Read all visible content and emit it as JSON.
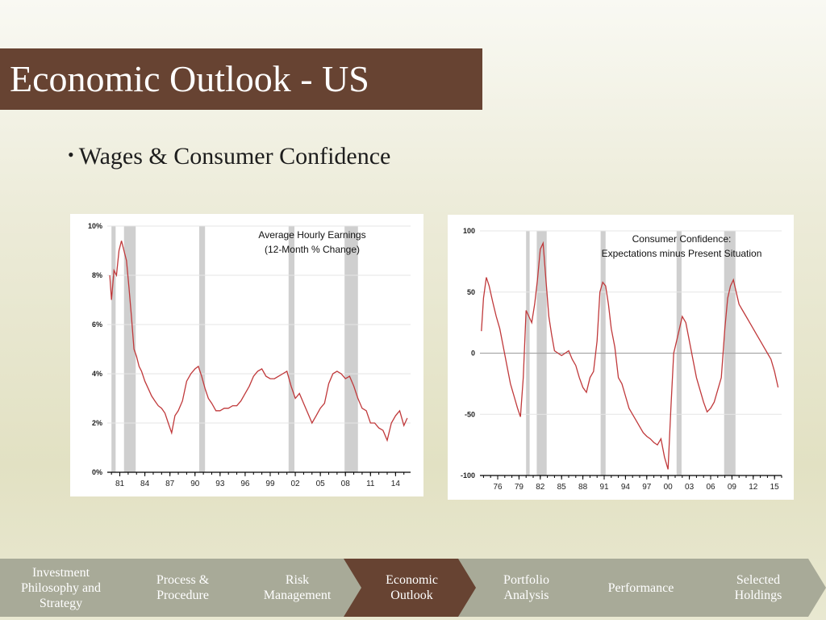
{
  "slide": {
    "title": "Economic Outlook - US",
    "bullet": "Wages & Consumer Confidence"
  },
  "colors": {
    "title_bar": "#674332",
    "line": "#c0393b",
    "recession": "#cfcfcf",
    "nav_inactive": "#a8aa98",
    "nav_active": "#674332"
  },
  "navigation": [
    {
      "label": "Investment\nPhilosophy and\nStrategy",
      "active": false
    },
    {
      "label": "Process &\nProcedure",
      "active": false
    },
    {
      "label": "Risk\nManagement",
      "active": false
    },
    {
      "label": "Economic\nOutlook",
      "active": true
    },
    {
      "label": "Portfolio\nAnalysis",
      "active": false
    },
    {
      "label": "Performance",
      "active": false
    },
    {
      "label": "Selected\nHoldings",
      "active": false
    }
  ],
  "chart_data": [
    {
      "type": "line",
      "title": "Average Hourly Earnings",
      "subtitle": "(12-Month % Change)",
      "xlim": [
        1979.5,
        2015.8
      ],
      "ylim": [
        0,
        10
      ],
      "x_ticks": [
        1981,
        1984,
        1987,
        1990,
        1993,
        1996,
        1999,
        2002,
        2005,
        2008,
        2011,
        2014
      ],
      "x_tick_labels": [
        "81",
        "84",
        "87",
        "90",
        "93",
        "96",
        "99",
        "02",
        "05",
        "08",
        "11",
        "14"
      ],
      "y_ticks": [
        0,
        2,
        4,
        6,
        8,
        10
      ],
      "y_tick_labels": [
        "0%",
        "2%",
        "4%",
        "6%",
        "8%",
        "10%"
      ],
      "grid": true,
      "recessions": [
        [
          1980.0,
          1980.5
        ],
        [
          1981.5,
          1982.9
        ],
        [
          1990.5,
          1991.2
        ],
        [
          2001.2,
          2001.9
        ],
        [
          2007.9,
          2009.5
        ]
      ],
      "series": [
        {
          "x": [
            1979.8,
            1980.0,
            1980.3,
            1980.6,
            1980.9,
            1981.2,
            1981.5,
            1981.8,
            1982.1,
            1982.4,
            1982.7,
            1983.0,
            1983.3,
            1983.6,
            1984.0,
            1984.4,
            1984.8,
            1985.2,
            1985.6,
            1986.0,
            1986.4,
            1986.8,
            1987.2,
            1987.6,
            1988.0,
            1988.5,
            1989.0,
            1989.5,
            1990.0,
            1990.4,
            1990.8,
            1991.2,
            1991.6,
            1992.0,
            1992.5,
            1993.0,
            1993.5,
            1994.0,
            1994.5,
            1995.0,
            1995.5,
            1996.0,
            1996.5,
            1997.0,
            1997.5,
            1998.0,
            1998.5,
            1999.0,
            1999.5,
            2000.0,
            2000.5,
            2001.0,
            2001.5,
            2002.0,
            2002.5,
            2003.0,
            2003.5,
            2004.0,
            2004.5,
            2005.0,
            2005.5,
            2006.0,
            2006.5,
            2007.0,
            2007.5,
            2008.0,
            2008.5,
            2009.0,
            2009.5,
            2010.0,
            2010.5,
            2011.0,
            2011.5,
            2012.0,
            2012.5,
            2013.0,
            2013.5,
            2014.0,
            2014.5,
            2015.0,
            2015.4
          ],
          "values": [
            8.0,
            7.0,
            8.2,
            8.0,
            9.0,
            9.4,
            9.0,
            8.6,
            7.5,
            6.3,
            5.0,
            4.7,
            4.3,
            4.1,
            3.7,
            3.4,
            3.1,
            2.9,
            2.7,
            2.6,
            2.4,
            2.0,
            1.6,
            2.3,
            2.5,
            2.9,
            3.7,
            4.0,
            4.2,
            4.3,
            3.9,
            3.4,
            3.0,
            2.8,
            2.5,
            2.5,
            2.6,
            2.6,
            2.7,
            2.7,
            2.9,
            3.2,
            3.5,
            3.9,
            4.1,
            4.2,
            3.9,
            3.8,
            3.8,
            3.9,
            4.0,
            4.1,
            3.5,
            3.0,
            3.2,
            2.8,
            2.4,
            2.0,
            2.3,
            2.6,
            2.8,
            3.6,
            4.0,
            4.1,
            4.0,
            3.8,
            3.9,
            3.5,
            3.0,
            2.6,
            2.5,
            2.0,
            2.0,
            1.8,
            1.7,
            1.3,
            2.0,
            2.3,
            2.5,
            1.9,
            2.2
          ]
        }
      ]
    },
    {
      "type": "line",
      "title": "Consumer Confidence:",
      "subtitle": "Expectations minus Present Situation",
      "xlim": [
        1973.5,
        2016.0
      ],
      "ylim": [
        -100,
        100
      ],
      "x_ticks": [
        1976,
        1979,
        1982,
        1985,
        1988,
        1991,
        1994,
        1997,
        2000,
        2003,
        2006,
        2009,
        2012,
        2015
      ],
      "x_tick_labels": [
        "76",
        "79",
        "82",
        "85",
        "88",
        "91",
        "94",
        "97",
        "00",
        "03",
        "06",
        "09",
        "12",
        "15"
      ],
      "y_ticks": [
        -100,
        -50,
        0,
        50,
        100
      ],
      "y_tick_labels": [
        "-100",
        "-50",
        "0",
        "50",
        "100"
      ],
      "grid": true,
      "recessions": [
        [
          1980.0,
          1980.5
        ],
        [
          1981.5,
          1982.9
        ],
        [
          1990.5,
          1991.2
        ],
        [
          2001.2,
          2001.9
        ],
        [
          2007.9,
          2009.5
        ]
      ],
      "series": [
        {
          "x": [
            1973.7,
            1974.0,
            1974.4,
            1974.8,
            1975.3,
            1975.8,
            1976.3,
            1976.8,
            1977.3,
            1977.8,
            1978.3,
            1978.8,
            1979.2,
            1979.6,
            1980.0,
            1980.4,
            1980.8,
            1981.2,
            1981.6,
            1982.0,
            1982.4,
            1982.8,
            1983.2,
            1983.6,
            1984.0,
            1984.5,
            1985.0,
            1985.5,
            1986.0,
            1986.5,
            1987.0,
            1987.5,
            1988.0,
            1988.5,
            1989.0,
            1989.5,
            1990.0,
            1990.4,
            1990.8,
            1991.2,
            1991.6,
            1992.0,
            1992.5,
            1993.0,
            1993.5,
            1994.0,
            1994.5,
            1995.0,
            1995.5,
            1996.0,
            1996.5,
            1997.0,
            1997.5,
            1998.0,
            1998.5,
            1999.0,
            1999.5,
            2000.0,
            2000.4,
            2000.8,
            2001.2,
            2001.6,
            2002.0,
            2002.5,
            2003.0,
            2003.5,
            2004.0,
            2004.5,
            2005.0,
            2005.5,
            2006.0,
            2006.5,
            2007.0,
            2007.5,
            2008.0,
            2008.4,
            2008.8,
            2009.2,
            2009.6,
            2010.0,
            2010.5,
            2011.0,
            2011.5,
            2012.0,
            2012.5,
            2013.0,
            2013.5,
            2014.0,
            2014.5,
            2015.0,
            2015.5
          ],
          "values": [
            18,
            45,
            62,
            55,
            42,
            30,
            20,
            5,
            -10,
            -25,
            -35,
            -45,
            -52,
            -20,
            35,
            30,
            25,
            40,
            60,
            85,
            90,
            60,
            30,
            15,
            2,
            0,
            -2,
            0,
            2,
            -5,
            -10,
            -20,
            -28,
            -32,
            -20,
            -15,
            10,
            50,
            58,
            55,
            40,
            20,
            5,
            -20,
            -25,
            -35,
            -45,
            -50,
            -55,
            -60,
            -65,
            -68,
            -70,
            -73,
            -75,
            -70,
            -85,
            -95,
            -45,
            0,
            10,
            20,
            30,
            25,
            10,
            -5,
            -20,
            -30,
            -40,
            -48,
            -45,
            -40,
            -30,
            -20,
            20,
            45,
            55,
            60,
            50,
            40,
            35,
            30,
            25,
            20,
            15,
            10,
            5,
            0,
            -5,
            -15,
            -28
          ]
        }
      ]
    }
  ]
}
